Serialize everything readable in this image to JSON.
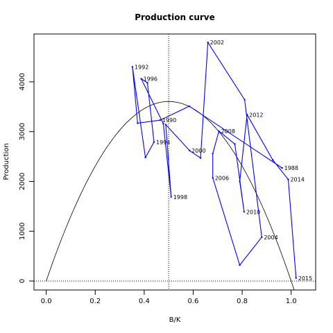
{
  "chart_data": {
    "type": "line",
    "title": "Production curve",
    "xlabel": "B/K",
    "ylabel": "Production",
    "xlim": [
      -0.05,
      1.1
    ],
    "ylim": [
      -180,
      4960
    ],
    "x_ticks": [
      0.0,
      0.2,
      0.4,
      0.6,
      0.8,
      1.0
    ],
    "x_tick_labels": [
      "0.0",
      "0.2",
      "0.4",
      "0.6",
      "0.8",
      "1.0"
    ],
    "y_ticks": [
      0,
      1000,
      2000,
      3000,
      4000
    ],
    "y_tick_labels": [
      "0",
      "1000",
      "2000",
      "3000",
      "4000"
    ],
    "grid": false,
    "series": [
      {
        "color": "#0000ff",
        "points": [
          {
            "x": 0.963,
            "y": 2270,
            "label": "1988"
          },
          {
            "x": 0.584,
            "y": 3510,
            "label": ""
          },
          {
            "x": 0.465,
            "y": 3230,
            "label": "1990"
          },
          {
            "x": 0.373,
            "y": 3170,
            "label": ""
          },
          {
            "x": 0.352,
            "y": 4300,
            "label": "1992"
          },
          {
            "x": 0.405,
            "y": 2480,
            "label": ""
          },
          {
            "x": 0.44,
            "y": 2790,
            "label": "1994"
          },
          {
            "x": 0.413,
            "y": 3980,
            "label": ""
          },
          {
            "x": 0.388,
            "y": 4060,
            "label": "1996"
          },
          {
            "x": 0.478,
            "y": 3160,
            "label": ""
          },
          {
            "x": 0.51,
            "y": 1690,
            "label": "1998"
          },
          {
            "x": 0.488,
            "y": 3140,
            "label": ""
          },
          {
            "x": 0.585,
            "y": 2620,
            "label": "2000"
          },
          {
            "x": 0.63,
            "y": 2470,
            "label": ""
          },
          {
            "x": 0.66,
            "y": 4790,
            "label": "2002"
          },
          {
            "x": 0.81,
            "y": 3640,
            "label": ""
          },
          {
            "x": 0.88,
            "y": 880,
            "label": "2004"
          },
          {
            "x": 0.79,
            "y": 320,
            "label": ""
          },
          {
            "x": 0.68,
            "y": 2070,
            "label": "2006"
          },
          {
            "x": 0.68,
            "y": 2560,
            "label": ""
          },
          {
            "x": 0.705,
            "y": 3010,
            "label": "2008"
          },
          {
            "x": 0.77,
            "y": 2750,
            "label": ""
          },
          {
            "x": 0.808,
            "y": 1390,
            "label": "2010"
          },
          {
            "x": 0.79,
            "y": 2000,
            "label": ""
          },
          {
            "x": 0.82,
            "y": 3340,
            "label": "2012"
          },
          {
            "x": 0.925,
            "y": 2430,
            "label": ""
          },
          {
            "x": 0.988,
            "y": 2040,
            "label": "2014"
          },
          {
            "x": 1.02,
            "y": 60,
            "label": "2015"
          }
        ]
      }
    ],
    "curve": {
      "r": 4.08,
      "k": 1.0,
      "peak_x": 0.5,
      "peak_y": 3605,
      "color": "#000000"
    },
    "reference_lines": {
      "vertical_x": 0.5,
      "horizontal_y": 0
    }
  }
}
